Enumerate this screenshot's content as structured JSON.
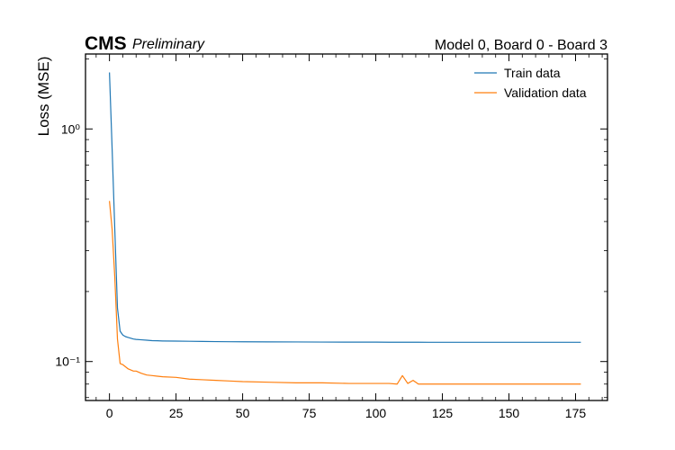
{
  "labels": {
    "experiment": "CMS",
    "status": "Preliminary",
    "right": "Model 0, Board 0 - Board 3"
  },
  "chart_data": {
    "type": "line",
    "xlabel": "",
    "ylabel": "Loss (MSE)",
    "xlim": [
      -9,
      187
    ],
    "ylim": [
      0.068,
      2.1
    ],
    "yscale": "log",
    "grid": false,
    "legend_position": "top-right",
    "x_ticks": [
      0,
      25,
      50,
      75,
      100,
      125,
      150,
      175
    ],
    "x_tick_labels": [
      "0",
      "25",
      "50",
      "75",
      "100",
      "125",
      "150",
      "175"
    ],
    "y_major_ticks": [
      0.1,
      1.0
    ],
    "y_major_tick_labels": [
      "10⁻¹",
      "10⁰"
    ],
    "x": [
      0,
      1,
      2,
      3,
      4,
      5,
      6,
      7,
      8,
      9,
      10,
      12,
      14,
      16,
      18,
      20,
      25,
      30,
      35,
      40,
      45,
      50,
      60,
      70,
      80,
      90,
      100,
      105,
      108,
      110,
      112,
      114,
      116,
      120,
      130,
      140,
      150,
      160,
      170,
      177
    ],
    "series": [
      {
        "name": "Train data",
        "color": "#1f77b4",
        "values": [
          1.75,
          0.82,
          0.37,
          0.17,
          0.135,
          0.13,
          0.128,
          0.127,
          0.126,
          0.125,
          0.1245,
          0.124,
          0.1235,
          0.123,
          0.1228,
          0.1226,
          0.1224,
          0.1222,
          0.122,
          0.1218,
          0.1217,
          0.1216,
          0.1215,
          0.1214,
          0.1213,
          0.1212,
          0.1212,
          0.1211,
          0.1211,
          0.1211,
          0.1211,
          0.1211,
          0.1211,
          0.121,
          0.121,
          0.121,
          0.121,
          0.121,
          0.121,
          0.121
        ]
      },
      {
        "name": "Validation data",
        "color": "#ff7f0e",
        "values": [
          0.49,
          0.37,
          0.23,
          0.125,
          0.098,
          0.097,
          0.095,
          0.093,
          0.092,
          0.091,
          0.091,
          0.089,
          0.0875,
          0.087,
          0.0865,
          0.086,
          0.0855,
          0.084,
          0.0835,
          0.083,
          0.0825,
          0.082,
          0.0815,
          0.081,
          0.081,
          0.0805,
          0.0805,
          0.0805,
          0.08,
          0.087,
          0.0805,
          0.083,
          0.08,
          0.08,
          0.08,
          0.08,
          0.08,
          0.08,
          0.08,
          0.08
        ]
      }
    ]
  }
}
